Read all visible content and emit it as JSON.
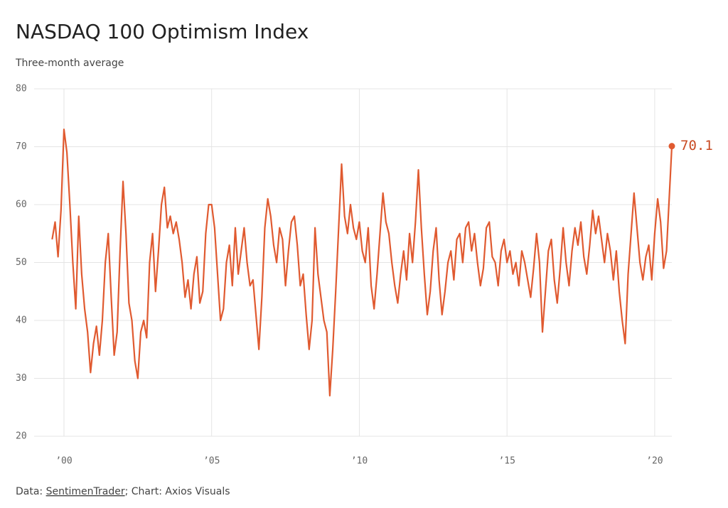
{
  "chart_data": {
    "type": "line",
    "title": "NASDAQ 100 Optimism Index",
    "subtitle": "Three-month average",
    "source": {
      "prefix": "Data:",
      "link": "SentimenTrader",
      "rest": "; Chart: Axios Visuals"
    },
    "color": "#e05a30",
    "x": [
      1999.6,
      1999.7,
      1999.8,
      1999.9,
      2000.0,
      2000.1,
      2000.2,
      2000.3,
      2000.4,
      2000.5,
      2000.6,
      2000.7,
      2000.8,
      2000.9,
      2001.0,
      2001.1,
      2001.2,
      2001.3,
      2001.4,
      2001.5,
      2001.6,
      2001.7,
      2001.8,
      2001.9,
      2002.0,
      2002.1,
      2002.2,
      2002.3,
      2002.4,
      2002.5,
      2002.6,
      2002.7,
      2002.8,
      2002.9,
      2003.0,
      2003.1,
      2003.2,
      2003.3,
      2003.4,
      2003.5,
      2003.6,
      2003.7,
      2003.8,
      2003.9,
      2004.0,
      2004.1,
      2004.2,
      2004.3,
      2004.4,
      2004.5,
      2004.6,
      2004.7,
      2004.8,
      2004.9,
      2005.0,
      2005.1,
      2005.2,
      2005.3,
      2005.4,
      2005.5,
      2005.6,
      2005.7,
      2005.8,
      2005.9,
      2006.0,
      2006.1,
      2006.2,
      2006.3,
      2006.4,
      2006.5,
      2006.6,
      2006.7,
      2006.8,
      2006.9,
      2007.0,
      2007.1,
      2007.2,
      2007.3,
      2007.4,
      2007.5,
      2007.6,
      2007.7,
      2007.8,
      2007.9,
      2008.0,
      2008.1,
      2008.2,
      2008.3,
      2008.4,
      2008.5,
      2008.6,
      2008.7,
      2008.8,
      2008.9,
      2009.0,
      2009.1,
      2009.2,
      2009.3,
      2009.4,
      2009.5,
      2009.6,
      2009.7,
      2009.8,
      2009.9,
      2010.0,
      2010.1,
      2010.2,
      2010.3,
      2010.4,
      2010.5,
      2010.6,
      2010.7,
      2010.8,
      2010.9,
      2011.0,
      2011.1,
      2011.2,
      2011.3,
      2011.4,
      2011.5,
      2011.6,
      2011.7,
      2011.8,
      2011.9,
      2012.0,
      2012.1,
      2012.2,
      2012.3,
      2012.4,
      2012.5,
      2012.6,
      2012.7,
      2012.8,
      2012.9,
      2013.0,
      2013.1,
      2013.2,
      2013.3,
      2013.4,
      2013.5,
      2013.6,
      2013.7,
      2013.8,
      2013.9,
      2014.0,
      2014.1,
      2014.2,
      2014.3,
      2014.4,
      2014.5,
      2014.6,
      2014.7,
      2014.8,
      2014.9,
      2015.0,
      2015.1,
      2015.2,
      2015.3,
      2015.4,
      2015.5,
      2015.6,
      2015.7,
      2015.8,
      2015.9,
      2016.0,
      2016.1,
      2016.2,
      2016.3,
      2016.4,
      2016.5,
      2016.6,
      2016.7,
      2016.8,
      2016.9,
      2017.0,
      2017.1,
      2017.2,
      2017.3,
      2017.4,
      2017.5,
      2017.6,
      2017.7,
      2017.8,
      2017.9,
      2018.0,
      2018.1,
      2018.2,
      2018.3,
      2018.4,
      2018.5,
      2018.6,
      2018.7,
      2018.8,
      2018.9,
      2019.0,
      2019.1,
      2019.2,
      2019.3,
      2019.4,
      2019.5,
      2019.6,
      2019.7,
      2019.8,
      2019.9,
      2020.0,
      2020.1,
      2020.2,
      2020.3,
      2020.4,
      2020.5,
      2020.58
    ],
    "values": [
      54,
      57,
      51,
      59,
      73,
      69,
      60,
      50,
      42,
      58,
      48,
      42,
      38,
      31,
      36,
      39,
      34,
      40,
      50,
      55,
      44,
      34,
      38,
      52,
      64,
      55,
      43,
      40,
      33,
      30,
      38,
      40,
      37,
      50,
      55,
      45,
      52,
      60,
      63,
      56,
      58,
      55,
      57,
      54,
      50,
      44,
      47,
      42,
      48,
      51,
      43,
      45,
      55,
      60,
      60,
      56,
      48,
      40,
      42,
      50,
      53,
      46,
      56,
      48,
      52,
      56,
      50,
      46,
      47,
      41,
      35,
      44,
      56,
      61,
      58,
      53,
      50,
      56,
      54,
      46,
      52,
      57,
      58,
      53,
      46,
      48,
      41,
      35,
      40,
      56,
      48,
      44,
      40,
      38,
      27,
      35,
      45,
      56,
      67,
      58,
      55,
      60,
      56,
      54,
      57,
      52,
      50,
      56,
      46,
      42,
      48,
      55,
      62,
      57,
      55,
      50,
      46,
      43,
      48,
      52,
      47,
      55,
      50,
      57,
      66,
      56,
      48,
      41,
      45,
      52,
      56,
      47,
      41,
      45,
      50,
      52,
      47,
      54,
      55,
      50,
      56,
      57,
      52,
      55,
      50,
      46,
      49,
      56,
      57,
      51,
      50,
      46,
      52,
      54,
      50,
      52,
      48,
      50,
      46,
      52,
      50,
      47,
      44,
      49,
      55,
      50,
      38,
      45,
      52,
      54,
      47,
      43,
      49,
      56,
      50,
      46,
      52,
      56,
      53,
      57,
      51,
      48,
      53,
      59,
      55,
      58,
      54,
      50,
      55,
      52,
      47,
      52,
      45,
      40,
      36,
      48,
      55,
      62,
      56,
      50,
      47,
      51,
      53,
      47,
      55,
      61,
      57,
      49,
      52,
      62,
      70.1
    ],
    "xlim": [
      1998.99,
      2020.58
    ],
    "xticks": [
      {
        "value": 2000,
        "label": "’00"
      },
      {
        "value": 2005,
        "label": "’05"
      },
      {
        "value": 2010,
        "label": "’10"
      },
      {
        "value": 2015,
        "label": "’15"
      },
      {
        "value": 2020,
        "label": "’20"
      }
    ],
    "ylim": [
      20,
      80
    ],
    "yticks": [
      20,
      30,
      40,
      50,
      60,
      70,
      80
    ],
    "grid": true,
    "end_label": true
  }
}
